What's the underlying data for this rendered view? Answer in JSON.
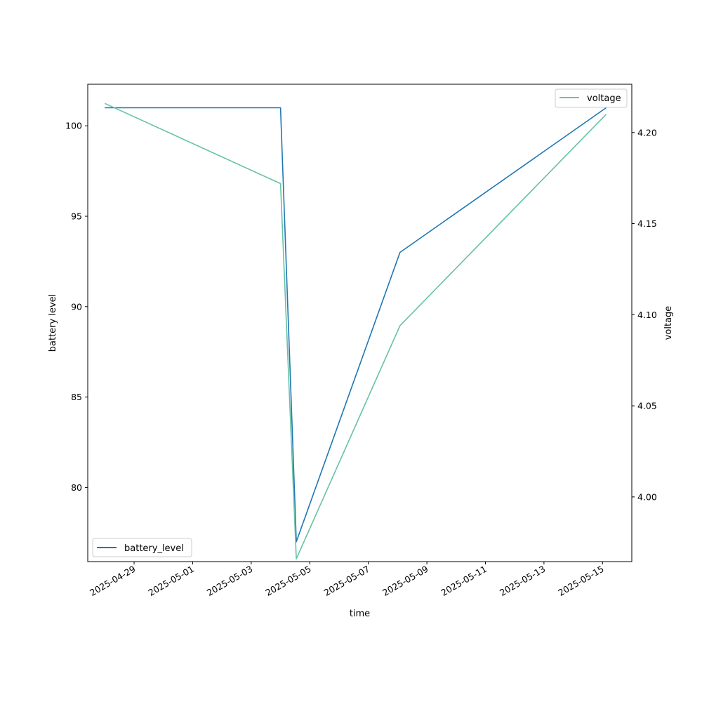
{
  "chart_data": {
    "type": "line",
    "xlabel": "time",
    "ylabel": "battery level",
    "y2label": "voltage",
    "xlim": [
      "2025-04-27T10:00",
      "2025-05-16T00:00"
    ],
    "ylim": [
      75.9,
      102.3
    ],
    "y2lim": [
      3.9645,
      4.2265
    ],
    "xticks": [
      "2025-04-29",
      "2025-05-01",
      "2025-05-03",
      "2025-05-05",
      "2025-05-07",
      "2025-05-09",
      "2025-05-11",
      "2025-05-13",
      "2025-05-15"
    ],
    "yticks": [
      80,
      85,
      90,
      95,
      100
    ],
    "y2ticks": [
      4.0,
      4.05,
      4.1,
      4.15,
      4.2
    ],
    "y2tick_labels": [
      "4.00",
      "4.05",
      "4.10",
      "4.15",
      "4.20"
    ],
    "grid": false,
    "series": [
      {
        "name": "battery_level",
        "axis": "left",
        "color": "#1f77b4",
        "legend": "lower-left",
        "x": [
          "2025-04-28T00:00",
          "2025-05-04T00:00",
          "2025-05-04T13:00",
          "2025-05-08T02:00",
          "2025-05-15T03:00"
        ],
        "values": [
          101,
          101,
          77,
          93,
          101
        ]
      },
      {
        "name": "voltage",
        "axis": "right",
        "color": "#66c2a5",
        "legend": "upper-right",
        "x": [
          "2025-04-28T00:00",
          "2025-05-04T00:00",
          "2025-05-04T13:00",
          "2025-05-08T02:00",
          "2025-05-15T03:00"
        ],
        "values": [
          4.216,
          4.172,
          3.966,
          4.094,
          4.21
        ]
      }
    ]
  }
}
